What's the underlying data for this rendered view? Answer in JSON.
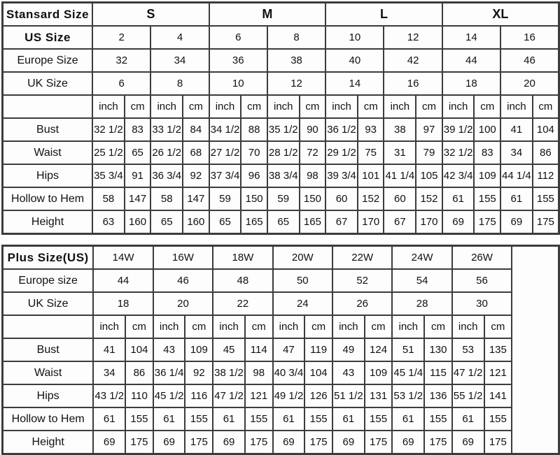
{
  "page": {
    "background_color": "#fefefe",
    "border_color": "#3c3c3c",
    "text_color": "#111111"
  },
  "standard_table": {
    "rows": [
      {
        "label": "Stansard Size",
        "label_bold": true,
        "span": 4,
        "cells_bold": true,
        "cells": [
          "S",
          "M",
          "L",
          "XL"
        ]
      },
      {
        "label": "US Size",
        "label_bold": true,
        "span": 2,
        "cells": [
          "2",
          "4",
          "6",
          "8",
          "10",
          "12",
          "14",
          "16"
        ]
      },
      {
        "label": "Europe Size",
        "label_bold": false,
        "span": 2,
        "cells": [
          "32",
          "34",
          "36",
          "38",
          "40",
          "42",
          "44",
          "46"
        ]
      },
      {
        "label": "UK Size",
        "label_bold": false,
        "span": 2,
        "cells": [
          "6",
          "8",
          "10",
          "12",
          "14",
          "16",
          "18",
          "20"
        ]
      },
      {
        "label": "",
        "label_bold": false,
        "span": 1,
        "cells": [
          "inch",
          "cm",
          "inch",
          "cm",
          "inch",
          "cm",
          "inch",
          "cm",
          "inch",
          "cm",
          "inch",
          "cm",
          "inch",
          "cm",
          "inch",
          "cm"
        ]
      },
      {
        "label": "Bust",
        "label_bold": false,
        "span": 1,
        "cells": [
          "32 1/2",
          "83",
          "33 1/2",
          "84",
          "34 1/2",
          "88",
          "35 1/2",
          "90",
          "36 1/2",
          "93",
          "38",
          "97",
          "39 1/2",
          "100",
          "41",
          "104"
        ]
      },
      {
        "label": "Waist",
        "label_bold": false,
        "span": 1,
        "cells": [
          "25 1/2",
          "65",
          "26 1/2",
          "68",
          "27 1/2",
          "70",
          "28 1/2",
          "72",
          "29 1/2",
          "75",
          "31",
          "79",
          "32 1/2",
          "83",
          "34",
          "86"
        ]
      },
      {
        "label": "Hips",
        "label_bold": false,
        "span": 1,
        "cells": [
          "35 3/4",
          "91",
          "36 3/4",
          "92",
          "37 3/4",
          "96",
          "38 3/4",
          "98",
          "39 3/4",
          "101",
          "41 1/4",
          "105",
          "42 3/4",
          "109",
          "44 1/4",
          "112"
        ]
      },
      {
        "label": "Hollow to Hem",
        "label_bold": false,
        "span": 1,
        "cells": [
          "58",
          "147",
          "58",
          "147",
          "59",
          "150",
          "59",
          "150",
          "60",
          "152",
          "60",
          "152",
          "61",
          "155",
          "61",
          "155"
        ]
      },
      {
        "label": "Height",
        "label_bold": false,
        "span": 1,
        "cells": [
          "63",
          "160",
          "65",
          "160",
          "65",
          "165",
          "65",
          "165",
          "67",
          "170",
          "67",
          "170",
          "69",
          "175",
          "69",
          "175"
        ]
      }
    ]
  },
  "plus_table": {
    "trailing_empty": true,
    "rows": [
      {
        "label": "Plus Size(US)",
        "label_bold": true,
        "span": 2,
        "cells": [
          "14W",
          "16W",
          "18W",
          "20W",
          "22W",
          "24W",
          "26W"
        ]
      },
      {
        "label": "Europe size",
        "label_bold": false,
        "span": 2,
        "cells": [
          "44",
          "46",
          "48",
          "50",
          "52",
          "54",
          "56"
        ]
      },
      {
        "label": "UK Size",
        "label_bold": false,
        "span": 2,
        "cells": [
          "18",
          "20",
          "22",
          "24",
          "26",
          "28",
          "30"
        ]
      },
      {
        "label": "",
        "label_bold": false,
        "span": 1,
        "cells": [
          "inch",
          "cm",
          "inch",
          "cm",
          "inch",
          "cm",
          "inch",
          "cm",
          "inch",
          "cm",
          "inch",
          "cm",
          "inch",
          "cm"
        ]
      },
      {
        "label": "Bust",
        "label_bold": false,
        "span": 1,
        "cells": [
          "41",
          "104",
          "43",
          "109",
          "45",
          "114",
          "47",
          "119",
          "49",
          "124",
          "51",
          "130",
          "53",
          "135"
        ]
      },
      {
        "label": "Waist",
        "label_bold": false,
        "span": 1,
        "cells": [
          "34",
          "86",
          "36 1/4",
          "92",
          "38 1/2",
          "98",
          "40 3/4",
          "104",
          "43",
          "109",
          "45 1/4",
          "115",
          "47 1/2",
          "121"
        ]
      },
      {
        "label": "Hips",
        "label_bold": false,
        "span": 1,
        "cells": [
          "43 1/2",
          "110",
          "45 1/2",
          "116",
          "47 1/2",
          "121",
          "49 1/2",
          "126",
          "51 1/2",
          "131",
          "53 1/2",
          "136",
          "55 1/2",
          "141"
        ]
      },
      {
        "label": "Hollow to Hem",
        "label_bold": false,
        "span": 1,
        "cells": [
          "61",
          "155",
          "61",
          "155",
          "61",
          "155",
          "61",
          "155",
          "61",
          "155",
          "61",
          "155",
          "61",
          "155"
        ]
      },
      {
        "label": "Height",
        "label_bold": false,
        "span": 1,
        "cells": [
          "69",
          "175",
          "69",
          "175",
          "69",
          "175",
          "69",
          "175",
          "69",
          "175",
          "69",
          "175",
          "69",
          "175"
        ]
      }
    ]
  }
}
